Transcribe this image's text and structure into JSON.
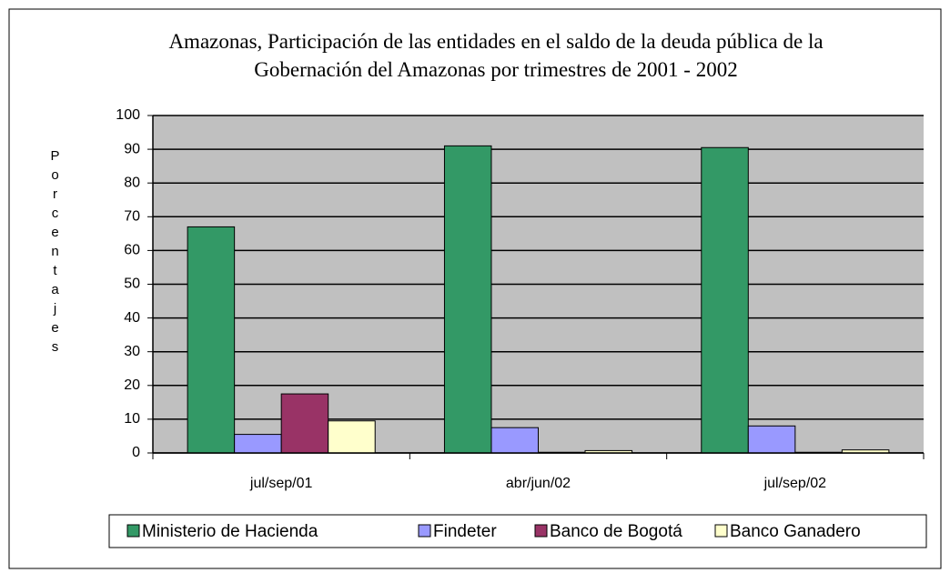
{
  "chart_data": {
    "type": "bar",
    "title": "Amazonas, Participación de las entidades en el saldo de la deuda pública de la Gobernación del Amazonas por trimestres de 2001 - 2002",
    "y_label": "Porcentajes",
    "categories": [
      "jul/sep/01",
      "abr/jun/02",
      "jul/sep/02"
    ],
    "series": [
      {
        "name": "Ministerio de Hacienda",
        "color": "#339966",
        "values": [
          67,
          91,
          90.5
        ]
      },
      {
        "name": "Findeter",
        "color": "#9999ff",
        "values": [
          5.5,
          7.5,
          8
        ]
      },
      {
        "name": "Banco de Bogotá",
        "color": "#993366",
        "values": [
          17.5,
          0.2,
          0.2
        ]
      },
      {
        "name": "Banco Ganadero",
        "color": "#ffffcc",
        "values": [
          9.5,
          0.7,
          0.9
        ]
      }
    ],
    "ylim": [
      0,
      100
    ],
    "yticks": [
      0,
      10,
      20,
      30,
      40,
      50,
      60,
      70,
      80,
      90,
      100
    ],
    "grid": true,
    "legend": "bottom"
  }
}
